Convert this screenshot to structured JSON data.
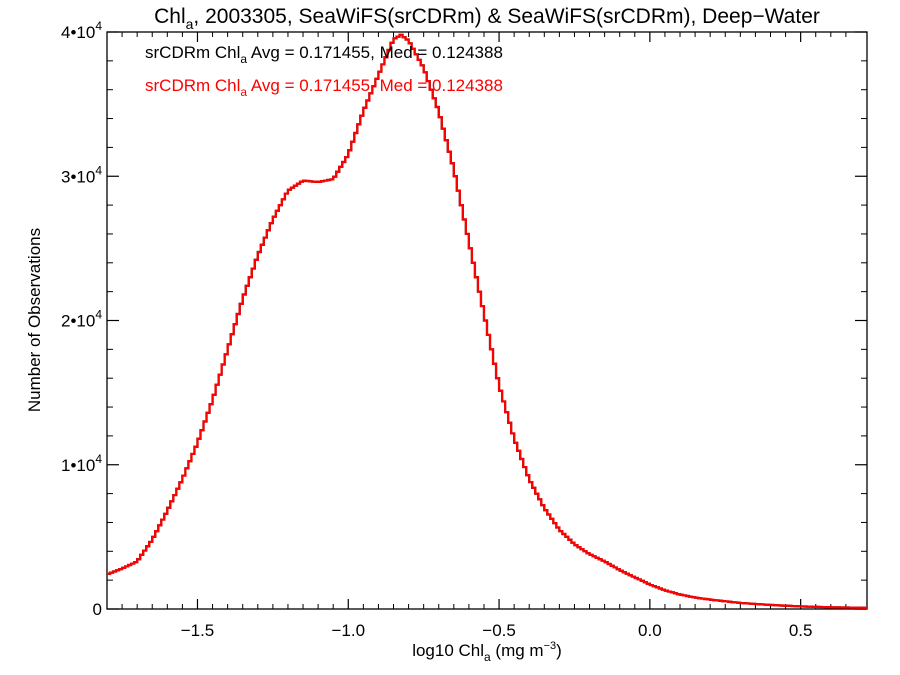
{
  "chart_data": {
    "type": "line",
    "title": {
      "prefix": "Chl",
      "sub": "a",
      "suffix": ", 2003305, SeaWiFS(srCDRm) & SeaWiFS(srCDRm), Deep−Water"
    },
    "xlabel": {
      "prefix": "log10 Chl",
      "sub": "a",
      "mid": " (mg m",
      "sup": "−3",
      "end": ")"
    },
    "ylabel": "Number of Observations",
    "xlim": [
      -1.8,
      0.72
    ],
    "ylim": [
      0,
      40000
    ],
    "x_ticks": [
      {
        "value": -1.5,
        "label": "−1.5"
      },
      {
        "value": -1.0,
        "label": "−1.0"
      },
      {
        "value": -0.5,
        "label": "−0.5"
      },
      {
        "value": 0.0,
        "label": "0.0"
      },
      {
        "value": 0.5,
        "label": "0.5"
      }
    ],
    "y_ticks": [
      {
        "value": 0,
        "base": "0",
        "exp": ""
      },
      {
        "value": 10000,
        "base": "1•10",
        "exp": "4"
      },
      {
        "value": 20000,
        "base": "2•10",
        "exp": "4"
      },
      {
        "value": 30000,
        "base": "3•10",
        "exp": "4"
      },
      {
        "value": 40000,
        "base": "4•10",
        "exp": "4"
      }
    ],
    "grid": false,
    "series": [
      {
        "color": "#000000",
        "stats": {
          "prefix": "srCDRm Chl",
          "sub": "a",
          "suffix": " Avg = 0.171455, Med = 0.124388"
        }
      },
      {
        "color": "#ff0000",
        "stats": {
          "prefix": "srCDRm Chl",
          "sub": "a",
          "suffix": " Avg = 0.171455, Med = 0.124388"
        }
      }
    ],
    "curve": {
      "x": [
        -1.8,
        -1.75,
        -1.7,
        -1.65,
        -1.6,
        -1.55,
        -1.5,
        -1.45,
        -1.4,
        -1.35,
        -1.3,
        -1.25,
        -1.2,
        -1.15,
        -1.1,
        -1.05,
        -1.0,
        -0.95,
        -0.9,
        -0.85,
        -0.825,
        -0.8,
        -0.75,
        -0.7,
        -0.65,
        -0.6,
        -0.55,
        -0.5,
        -0.45,
        -0.4,
        -0.35,
        -0.3,
        -0.25,
        -0.2,
        -0.15,
        -0.1,
        -0.05,
        0.0,
        0.05,
        0.1,
        0.15,
        0.2,
        0.3,
        0.4,
        0.5,
        0.6,
        0.72
      ],
      "y": [
        2400,
        2800,
        3300,
        4800,
        6800,
        9000,
        11500,
        14500,
        18000,
        21500,
        24500,
        27000,
        29000,
        29700,
        29600,
        29800,
        31500,
        34500,
        37000,
        39500,
        39800,
        39400,
        37500,
        34500,
        30500,
        25500,
        20500,
        15500,
        11800,
        9000,
        7000,
        5500,
        4500,
        3800,
        3300,
        2700,
        2200,
        1700,
        1300,
        1000,
        800,
        650,
        420,
        280,
        180,
        120,
        80
      ]
    }
  }
}
